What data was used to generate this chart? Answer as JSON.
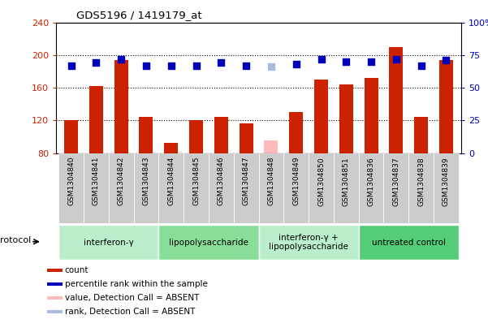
{
  "title": "GDS5196 / 1419179_at",
  "samples": [
    "GSM1304840",
    "GSM1304841",
    "GSM1304842",
    "GSM1304843",
    "GSM1304844",
    "GSM1304845",
    "GSM1304846",
    "GSM1304847",
    "GSM1304848",
    "GSM1304849",
    "GSM1304850",
    "GSM1304851",
    "GSM1304836",
    "GSM1304837",
    "GSM1304838",
    "GSM1304839"
  ],
  "counts": [
    120,
    162,
    194,
    124,
    93,
    120,
    124,
    116,
    null,
    130,
    170,
    164,
    172,
    210,
    124,
    194
  ],
  "counts_absent": [
    null,
    null,
    null,
    null,
    null,
    null,
    null,
    null,
    96,
    null,
    null,
    null,
    null,
    null,
    null,
    null
  ],
  "percentiles": [
    67,
    69,
    72,
    67,
    67,
    67,
    69,
    67,
    null,
    68,
    72,
    70,
    70,
    72,
    67,
    71
  ],
  "percentiles_absent": [
    null,
    null,
    null,
    null,
    null,
    null,
    null,
    null,
    66,
    null,
    null,
    null,
    null,
    null,
    null,
    null
  ],
  "ylim_left": [
    80,
    240
  ],
  "ylim_right": [
    0,
    100
  ],
  "yticks_left": [
    80,
    120,
    160,
    200,
    240
  ],
  "yticks_right": [
    0,
    25,
    50,
    75,
    100
  ],
  "ytick_labels_left": [
    "80",
    "120",
    "160",
    "200",
    "240"
  ],
  "ytick_labels_right": [
    "0",
    "25",
    "50",
    "75",
    "100%"
  ],
  "groups": [
    {
      "label": "interferon-γ",
      "start": 0,
      "end": 3,
      "color": "#bbeecc"
    },
    {
      "label": "lipopolysaccharide",
      "start": 4,
      "end": 7,
      "color": "#88dd99"
    },
    {
      "label": "interferon-γ +\nlipopolysaccharide",
      "start": 8,
      "end": 11,
      "color": "#bbeecc"
    },
    {
      "label": "untreated control",
      "start": 12,
      "end": 15,
      "color": "#55cc77"
    }
  ],
  "bar_color": "#cc2200",
  "bar_absent_color": "#ffbbbb",
  "dot_color": "#0000bb",
  "dot_absent_color": "#aabbdd",
  "bg_color": "#ffffff",
  "plot_bg": "#ffffff",
  "label_bg": "#cccccc",
  "legend_items": [
    {
      "label": "count",
      "color": "#cc2200"
    },
    {
      "label": "percentile rank within the sample",
      "color": "#0000bb"
    },
    {
      "label": "value, Detection Call = ABSENT",
      "color": "#ffbbbb"
    },
    {
      "label": "rank, Detection Call = ABSENT",
      "color": "#aabbdd"
    }
  ]
}
